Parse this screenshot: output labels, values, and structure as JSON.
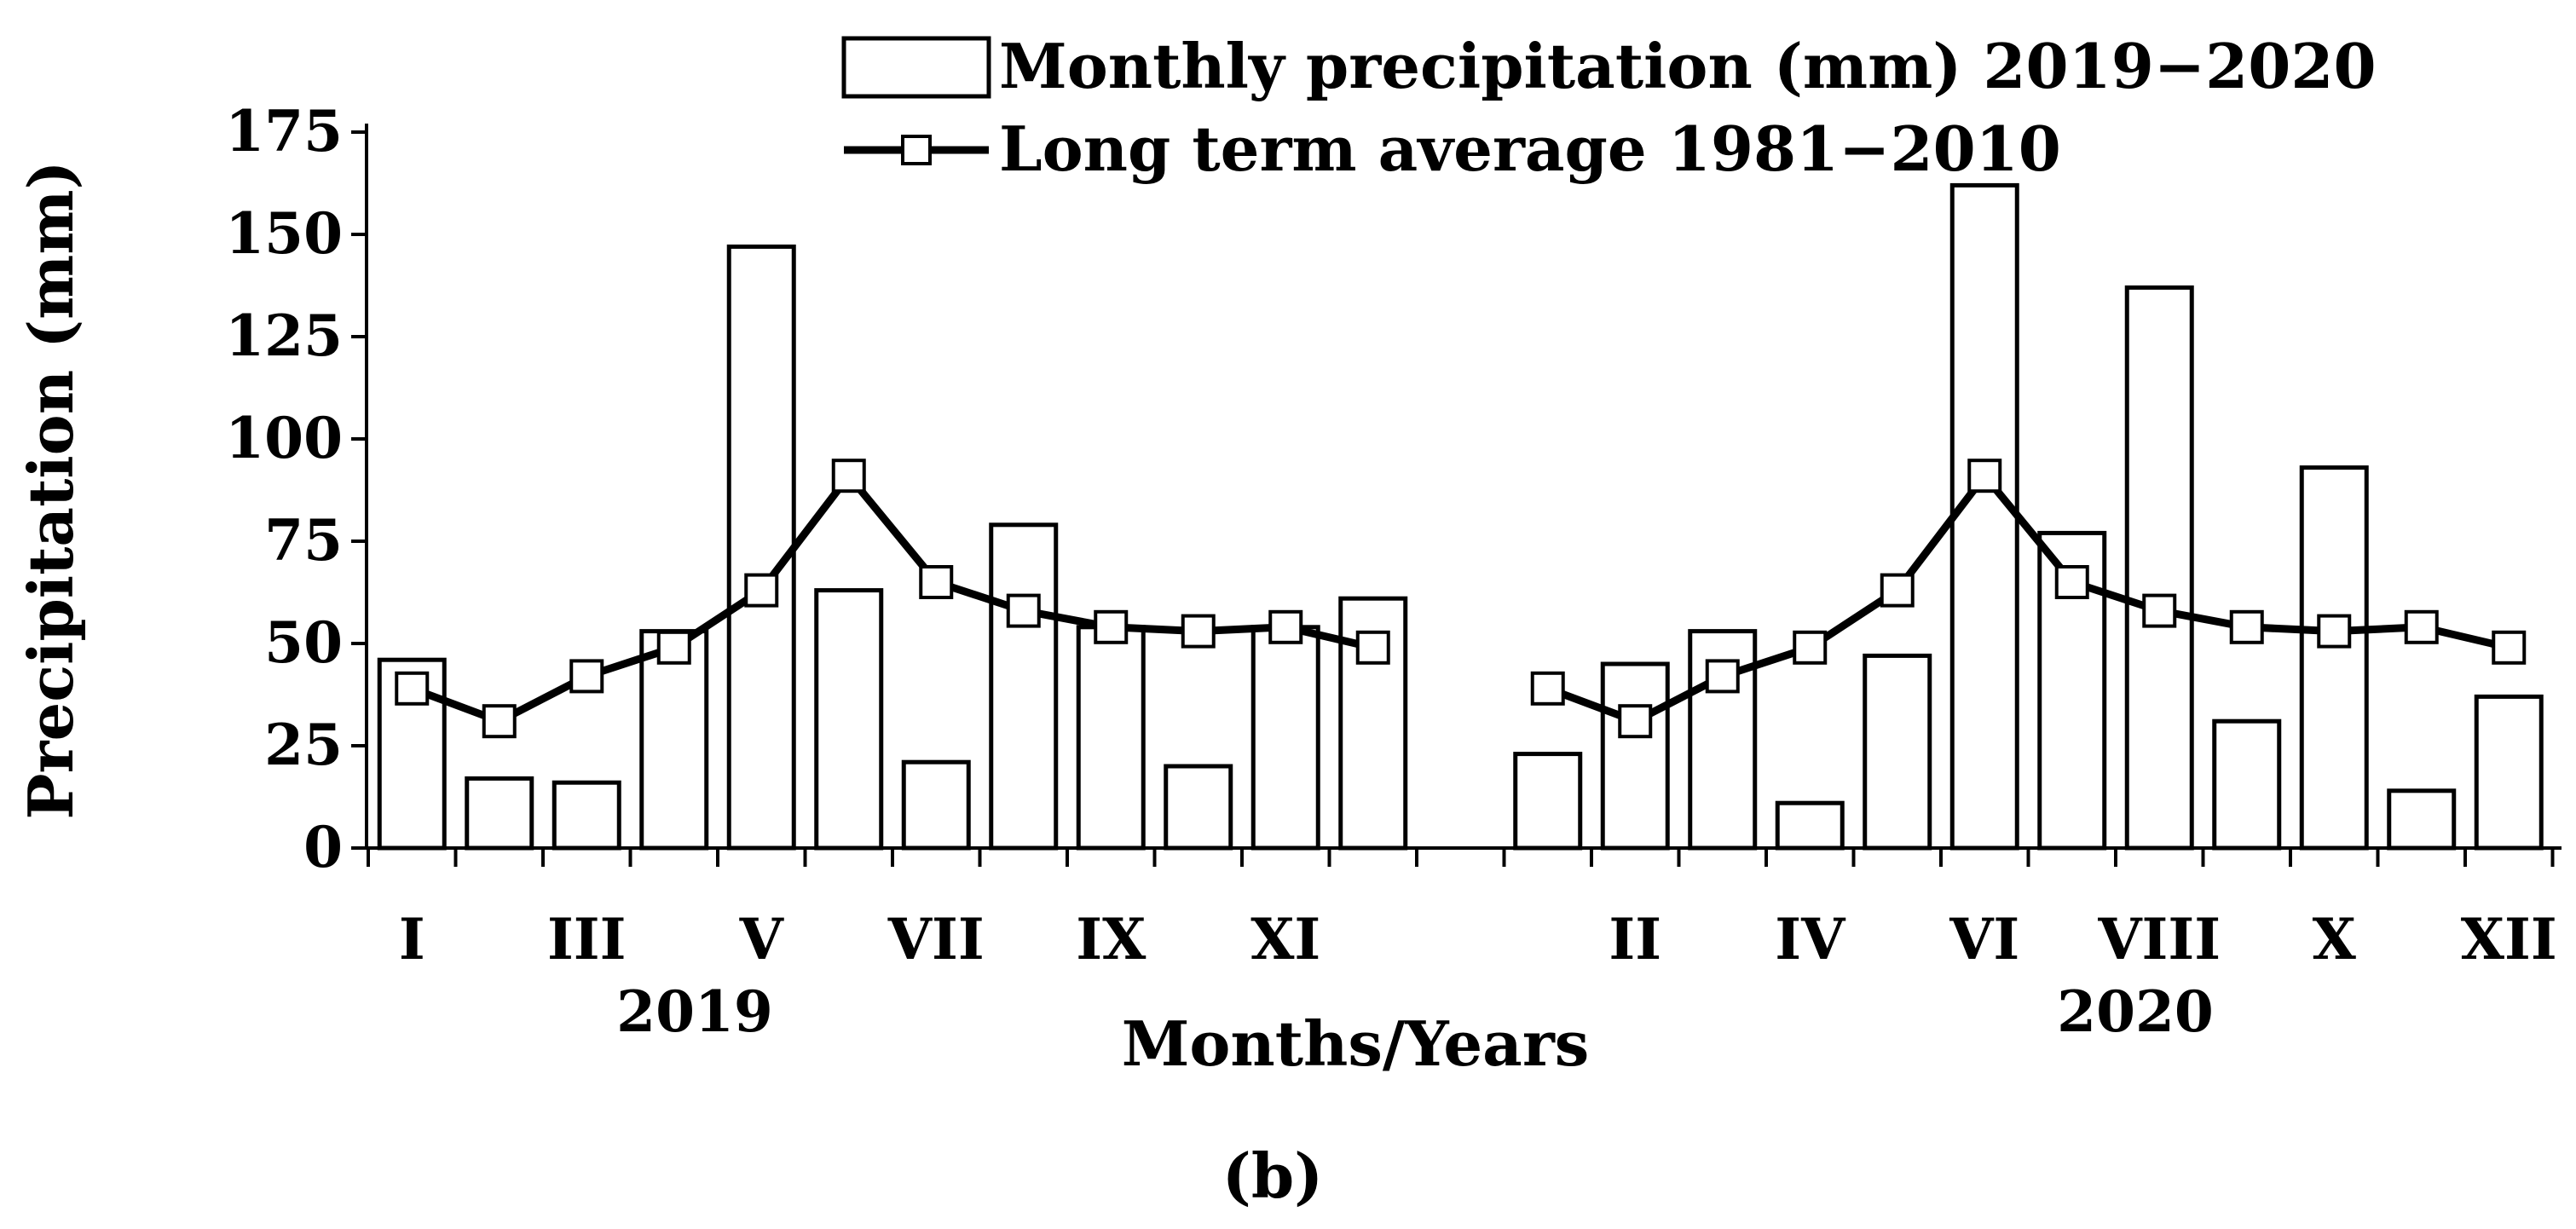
{
  "chart_data": {
    "type": "bar",
    "panel_label": "(b)",
    "xlabel": "Months/Years",
    "ylabel": "Precipitation (mm)",
    "ylim": [
      0,
      175
    ],
    "yticks": [
      0,
      25,
      50,
      75,
      100,
      125,
      150,
      175
    ],
    "legend_position": "top-center",
    "legend": {
      "bars_label": "Monthly precipitation (mm) 2019−2020",
      "line_label": "Long term average 1981−2010"
    },
    "groups": [
      {
        "year": "2019",
        "categories": [
          "I",
          "II",
          "III",
          "IV",
          "V",
          "VI",
          "VII",
          "VIII",
          "IX",
          "X",
          "XI",
          "XII"
        ],
        "visible_tick_labels": [
          "I",
          "",
          "III",
          "",
          "V",
          "",
          "VII",
          "",
          "IX",
          "",
          "XI",
          ""
        ],
        "precipitation": [
          46,
          17,
          16,
          53,
          147,
          63,
          21,
          79,
          54,
          20,
          54,
          61
        ],
        "long_term_average": [
          39,
          31,
          42,
          49,
          63,
          91,
          65,
          58,
          54,
          53,
          54,
          49
        ]
      },
      {
        "year": "2020",
        "categories": [
          "I",
          "II",
          "III",
          "IV",
          "V",
          "VI",
          "VII",
          "VIII",
          "IX",
          "X",
          "XI",
          "XII"
        ],
        "visible_tick_labels": [
          "",
          "II",
          "",
          "IV",
          "",
          "VI",
          "",
          "VIII",
          "",
          "X",
          "",
          "XII"
        ],
        "precipitation": [
          23,
          45,
          53,
          11,
          47,
          162,
          77,
          137,
          31,
          93,
          14,
          37
        ],
        "long_term_average": [
          39,
          31,
          42,
          49,
          63,
          91,
          65,
          58,
          54,
          53,
          54,
          49
        ]
      }
    ],
    "colors": {
      "bar_fill": "#ffffff",
      "bar_stroke": "#000000",
      "line": "#000000",
      "marker_fill": "#ffffff"
    }
  }
}
